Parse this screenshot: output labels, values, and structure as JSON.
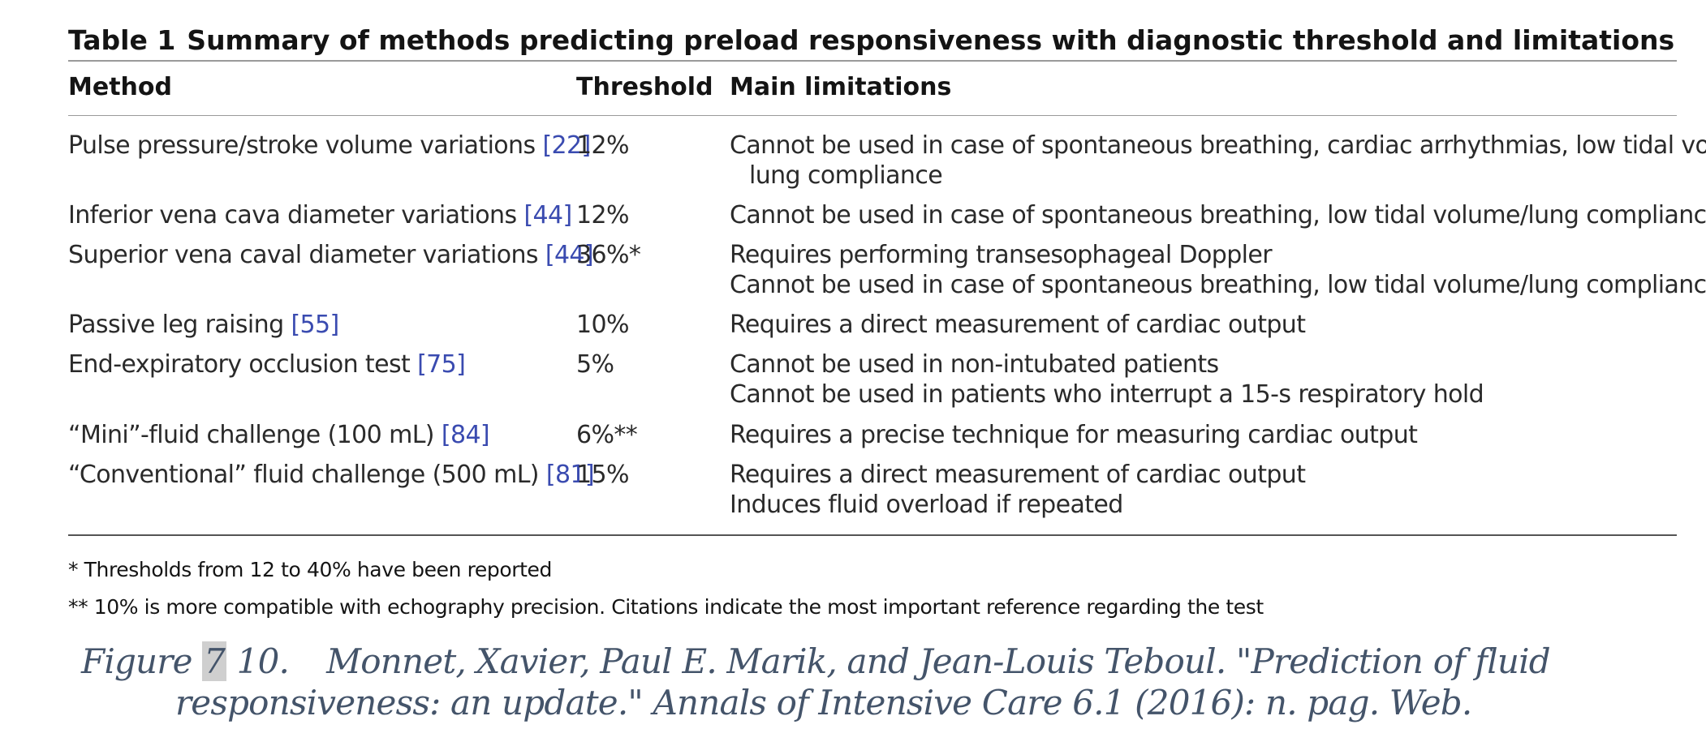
{
  "table": {
    "label": "Table 1",
    "title": "Summary of methods predicting preload responsiveness with diagnostic threshold and limitations",
    "columns": {
      "method": "Method",
      "threshold": "Threshold",
      "limitations": "Main limitations"
    },
    "rows": [
      {
        "method": "Pulse pressure/stroke volume variations ",
        "ref": "[22]",
        "threshold": "12%",
        "limitations": [
          "Cannot be used in case of spontaneous breathing, cardiac arrhythmias, low tidal volume/",
          "lung compliance"
        ]
      },
      {
        "method": "Inferior vena cava diameter variations ",
        "ref": "[44]",
        "threshold": "12%",
        "limitations": [
          "Cannot be used in case of spontaneous breathing, low tidal volume/lung compliance"
        ]
      },
      {
        "method": "Superior vena caval diameter variations ",
        "ref": "[44]",
        "threshold": "36%*",
        "limitations": [
          "Requires performing transesophageal Doppler",
          "Cannot be used in case of spontaneous breathing, low tidal volume/lung compliance"
        ]
      },
      {
        "method": "Passive leg raising ",
        "ref": "[55]",
        "threshold": "10%",
        "limitations": [
          "Requires a direct measurement of cardiac output"
        ]
      },
      {
        "method": "End-expiratory occlusion test ",
        "ref": "[75]",
        "threshold": "5%",
        "limitations": [
          "Cannot be used in non-intubated patients",
          "Cannot be used in patients who interrupt a 15-s respiratory hold"
        ]
      },
      {
        "method": "“Mini”-fluid challenge (100 mL) ",
        "ref": "[84]",
        "threshold": "6%**",
        "limitations": [
          "Requires a precise technique for measuring cardiac output"
        ]
      },
      {
        "method": "“Conventional” fluid challenge (500 mL) ",
        "ref": "[81]",
        "threshold": "15%",
        "limitations": [
          "Requires a direct measurement of cardiac output",
          "Induces fluid overload if repeated"
        ]
      }
    ],
    "notes": [
      "* Thresholds from 12 to 40% have been reported",
      "** 10% is more compatible with echography precision. Citations indicate the most important reference regarding the test"
    ]
  },
  "caption": {
    "prefix": "Figure ",
    "highlight": "7",
    "number": " 10.",
    "line1": "Monnet, Xavier, Paul E. Marik, and Jean-Louis Teboul. \"Prediction of fluid",
    "line2": "responsiveness: an update.\" Annals of Intensive Care 6.1 (2016): n. pag. Web."
  },
  "colors": {
    "reference_link": "#3a4bb0",
    "caption_text": "#44546a",
    "highlight": "#cfcfcf"
  }
}
